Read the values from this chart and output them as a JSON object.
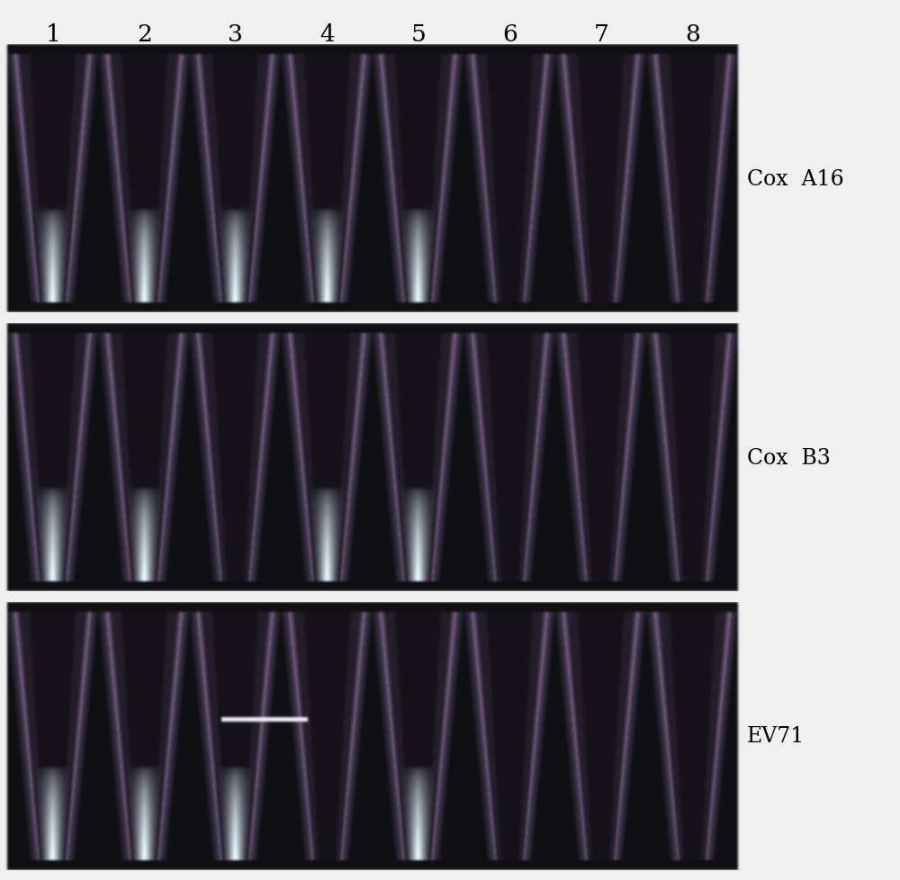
{
  "title_numbers": [
    "1",
    "2",
    "3",
    "4",
    "5",
    "6",
    "7",
    "8"
  ],
  "labels": [
    "Cox  A16",
    "Cox  B3",
    "EV71"
  ],
  "background_color": "#f0f0f0",
  "panel_bg_rgb": [
    15,
    15,
    20
  ],
  "tube_edge_rgb": [
    80,
    60,
    90
  ],
  "tube_inner_rgb": [
    35,
    30,
    40
  ],
  "glow_rgb": [
    220,
    220,
    230
  ],
  "panel_count": 3,
  "tubes_per_panel": 8,
  "glowing_tubes": {
    "0": [
      0,
      1,
      2,
      3,
      4
    ],
    "1": [
      0,
      1,
      3,
      4
    ],
    "2": [
      0,
      1,
      2,
      4
    ]
  },
  "label_fontsize": 17,
  "number_fontsize": 19,
  "bright_line_panel": 2,
  "bright_line_tube": 2
}
